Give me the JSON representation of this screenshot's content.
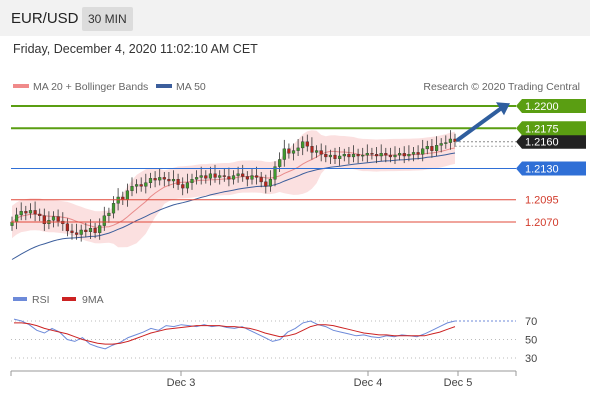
{
  "header": {
    "pair": "EUR/USD",
    "timeframe": "30 MIN"
  },
  "datetime": "Friday, December 4, 2020 11:02:10 AM CET",
  "legend": {
    "bollinger": "MA 20 + Bollinger Bands",
    "ma50": "MA 50",
    "credit": "Research © 2020 Trading Central"
  },
  "rsi_legend": {
    "rsi": "RSI",
    "ma9": "9MA"
  },
  "colors": {
    "green": "#5a9e12",
    "blue": "#2f6fd6",
    "red": "#e0493a",
    "candle_up": "#3f9a2e",
    "candle_down": "#b3261e",
    "band": "#f7c6c6",
    "ma50": "#3c5e9c",
    "rsi": "#6d8ad9",
    "rsi_ma": "#cc2222",
    "arrow": "#2f5e9e",
    "dark": "#222222"
  },
  "chart_data": [
    {
      "type": "candlestick",
      "title": "EUR/USD",
      "x": [
        "Dec 3",
        "Dec 4",
        "Dec 5"
      ],
      "ylim": [
        1.201,
        1.221
      ],
      "levels": [
        {
          "label": "1.2200",
          "value": 1.22,
          "style": "resistance",
          "color": "green"
        },
        {
          "label": "1.2175",
          "value": 1.2175,
          "style": "resistance",
          "color": "green"
        },
        {
          "label": "1.2130",
          "value": 1.213,
          "style": "pivot",
          "color": "blue"
        },
        {
          "label": "1.2095",
          "value": 1.2095,
          "style": "support",
          "color": "red"
        },
        {
          "label": "1.2070",
          "value": 1.207,
          "style": "support",
          "color": "red"
        }
      ],
      "current_price": {
        "label": "1.2160",
        "value": 1.216
      },
      "closes": [
        1.207,
        1.2078,
        1.2082,
        1.208,
        1.2083,
        1.2079,
        1.2077,
        1.2068,
        1.2072,
        1.2076,
        1.2071,
        1.2068,
        1.206,
        1.2058,
        1.2056,
        1.2061,
        1.2059,
        1.2063,
        1.2058,
        1.2066,
        1.2077,
        1.208,
        1.2091,
        1.2098,
        1.2095,
        1.2105,
        1.211,
        1.2112,
        1.211,
        1.2114,
        1.2119,
        1.2117,
        1.212,
        1.2118,
        1.2116,
        1.2118,
        1.2112,
        1.2108,
        1.2114,
        1.2118,
        1.212,
        1.2122,
        1.2119,
        1.2124,
        1.212,
        1.2122,
        1.2121,
        1.2118,
        1.2122,
        1.2124,
        1.2121,
        1.2118,
        1.2122,
        1.212,
        1.2115,
        1.211,
        1.2118,
        1.2132,
        1.214,
        1.2152,
        1.2147,
        1.215,
        1.2153,
        1.216,
        1.2155,
        1.2148,
        1.215,
        1.2146,
        1.2143,
        1.2145,
        1.2141,
        1.2144,
        1.2146,
        1.2143,
        1.2146,
        1.2144,
        1.2145,
        1.2147,
        1.2146,
        1.2144,
        1.2147,
        1.2145,
        1.2143,
        1.2145,
        1.2147,
        1.2144,
        1.2146,
        1.2148,
        1.2146,
        1.2152,
        1.2155,
        1.215,
        1.2156,
        1.2158,
        1.2159,
        1.2163,
        1.216
      ]
    },
    {
      "type": "line",
      "title": "RSI",
      "ylim": [
        20,
        80
      ],
      "y_ticks": [
        70,
        50,
        30
      ],
      "series": [
        {
          "name": "RSI",
          "values": [
            72,
            70,
            66,
            60,
            57,
            62,
            58,
            50,
            48,
            52,
            45,
            42,
            40,
            44,
            47,
            52,
            55,
            58,
            62,
            60,
            65,
            64,
            66,
            65,
            64,
            66,
            64,
            65,
            63,
            62,
            64,
            60,
            56,
            52,
            48,
            50,
            58,
            62,
            68,
            70,
            66,
            64,
            60,
            58,
            56,
            54,
            55,
            53,
            52,
            54,
            53,
            55,
            54,
            53,
            56,
            60,
            64,
            68,
            70
          ]
        },
        {
          "name": "9MA",
          "values": [
            68,
            68,
            67,
            65,
            62,
            60,
            58,
            56,
            53,
            50,
            48,
            46,
            45,
            45,
            46,
            48,
            51,
            54,
            57,
            59,
            61,
            62,
            63,
            64,
            65,
            65,
            65,
            65,
            64,
            64,
            63,
            62,
            60,
            57,
            55,
            53,
            54,
            56,
            60,
            64,
            66,
            66,
            65,
            63,
            61,
            59,
            57,
            56,
            55,
            55,
            54,
            54,
            54,
            54,
            54,
            56,
            58,
            61,
            64
          ]
        }
      ]
    }
  ]
}
